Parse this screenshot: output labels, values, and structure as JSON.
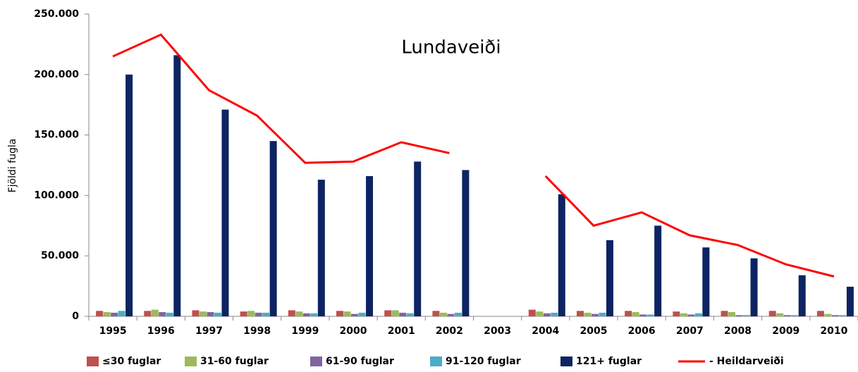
{
  "chart_data": {
    "type": "bar",
    "title": "Lundaveiði",
    "y_label": "Fjöldi fugla",
    "categories": [
      "1995",
      "1996",
      "1997",
      "1998",
      "1999",
      "2000",
      "2001",
      "2002",
      "2003",
      "2004",
      "2005",
      "2006",
      "2007",
      "2008",
      "2009",
      "2010"
    ],
    "series": [
      {
        "name": "≤30 fuglar",
        "color": "#c0504d",
        "values": [
          4500,
          4500,
          5000,
          4000,
          5000,
          4500,
          5000,
          4500,
          null,
          5500,
          4500,
          4500,
          4000,
          4500,
          4500,
          4500
        ]
      },
      {
        "name": "31-60 fuglar",
        "color": "#9bbb59",
        "values": [
          3500,
          5500,
          4000,
          4500,
          4000,
          4000,
          5000,
          3000,
          null,
          4000,
          3000,
          3500,
          2500,
          3500,
          2500,
          2000
        ]
      },
      {
        "name": "61-90 fuglar",
        "color": "#8064a2",
        "values": [
          3000,
          3500,
          3500,
          3000,
          2500,
          2000,
          3000,
          2000,
          null,
          2500,
          2000,
          1500,
          1500,
          1000,
          1000,
          1000
        ]
      },
      {
        "name": "91-120 fuglar",
        "color": "#4bacc6",
        "values": [
          4500,
          3000,
          3000,
          3000,
          2500,
          3000,
          2500,
          3000,
          null,
          3000,
          3000,
          1500,
          2500,
          1000,
          1000,
          1000
        ]
      },
      {
        "name": "121+ fuglar",
        "color": "#0d2463",
        "values": [
          200000,
          216000,
          171000,
          145000,
          113000,
          116000,
          128000,
          121000,
          null,
          101000,
          63000,
          75000,
          57000,
          48000,
          34000,
          24500
        ]
      },
      {
        "name": "- Heildarveiði",
        "color": "#ff0000",
        "type": "line",
        "values": [
          215000,
          233000,
          187000,
          166000,
          127000,
          128000,
          144000,
          135000,
          null,
          116000,
          75000,
          86000,
          67000,
          59000,
          43000,
          33000
        ]
      }
    ],
    "ylim": [
      0,
      250000
    ],
    "yticks": [
      0,
      {
        "value": 50000,
        "label": "50.000"
      },
      {
        "value": 100000,
        "label": "100.000"
      },
      {
        "value": 150000,
        "label": "150.000"
      },
      {
        "value": 200000,
        "label": "200.000"
      },
      {
        "value": 250000,
        "label": "250.000"
      }
    ],
    "legend": "bottom"
  }
}
